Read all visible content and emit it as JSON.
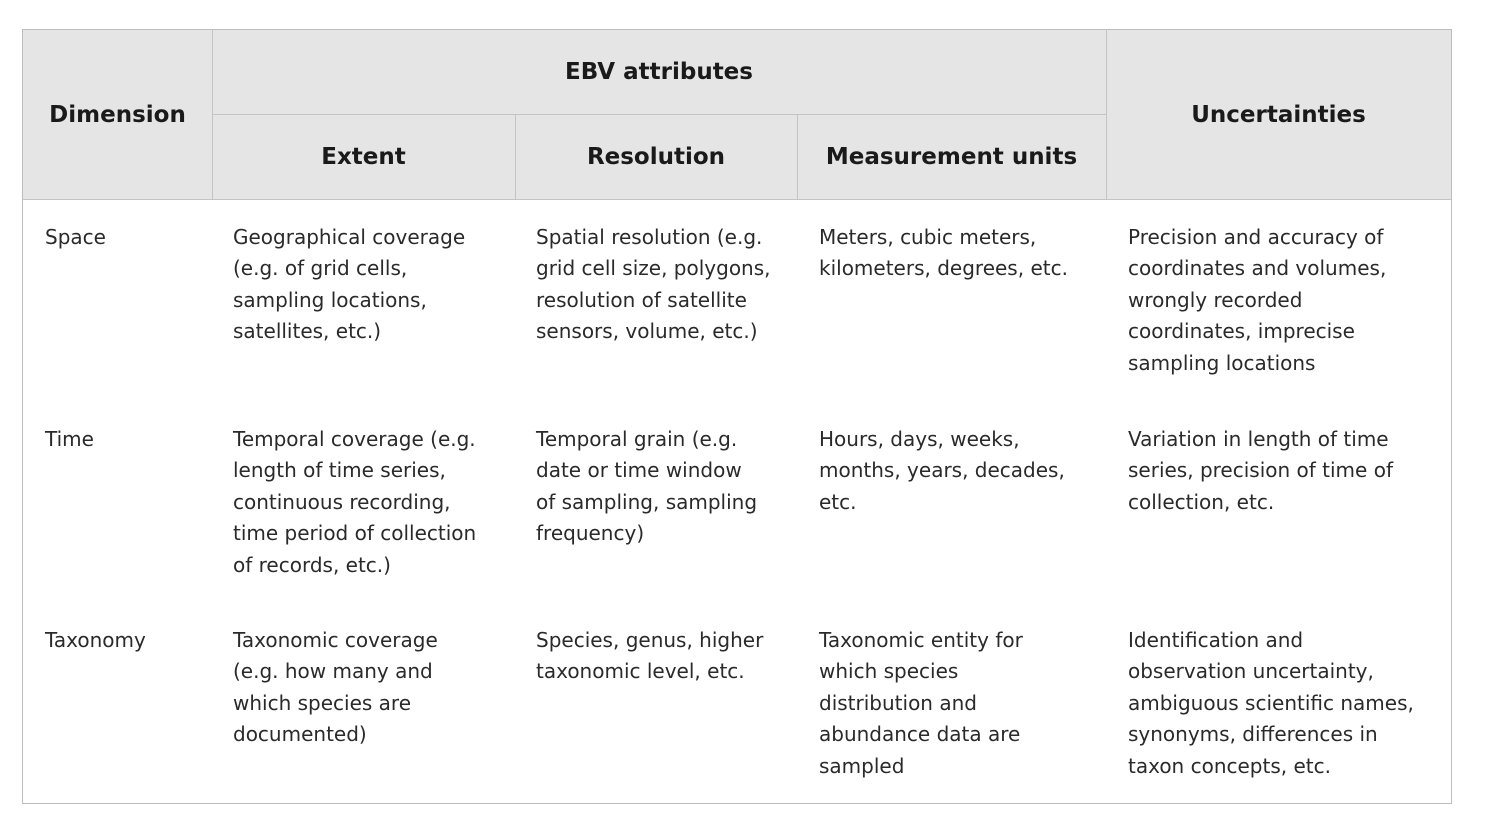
{
  "table": {
    "header": {
      "dimension": "Dimension",
      "ebv_attributes": "EBV attributes",
      "extent": "Extent",
      "resolution": "Resolution",
      "measurement_units": "Measurement units",
      "uncertainties": "Uncertainties"
    },
    "rows": [
      {
        "dimension": "Space",
        "extent": "Geographical coverage\n(e.g. of grid cells,\nsampling locations,\nsatellites, etc.)",
        "resolution": "Spatial resolution (e.g.\ngrid cell size, polygons,\nresolution of satellite\nsensors, volume, etc.)",
        "measurement_units": "Meters, cubic meters,\nkilometers, degrees, etc.",
        "uncertainties": "Precision and accuracy of\ncoordinates and volumes,\nwrongly recorded\ncoordinates, imprecise\nsampling locations"
      },
      {
        "dimension": "Time",
        "extent": "Temporal coverage (e.g.\nlength of time series,\ncontinuous recording,\ntime period of collection\nof records, etc.)",
        "resolution": "Temporal grain (e.g.\ndate or time window\nof sampling, sampling\nfrequency)",
        "measurement_units": "Hours, days, weeks,\nmonths, years, decades,\netc.",
        "uncertainties": "Variation in length of time\nseries, precision of time of\ncollection, etc."
      },
      {
        "dimension": "Taxonomy",
        "extent": "Taxonomic coverage\n(e.g. how many and\nwhich species are\ndocumented)",
        "resolution": "Species, genus, higher\ntaxonomic level, etc.",
        "measurement_units": "Taxonomic entity for\nwhich species\ndistribution and\nabundance data are\nsampled",
        "uncertainties": "Identification and\nobservation uncertainty,\nambiguous scientific names,\nsynonyms, differences in\ntaxon concepts, etc."
      }
    ]
  }
}
